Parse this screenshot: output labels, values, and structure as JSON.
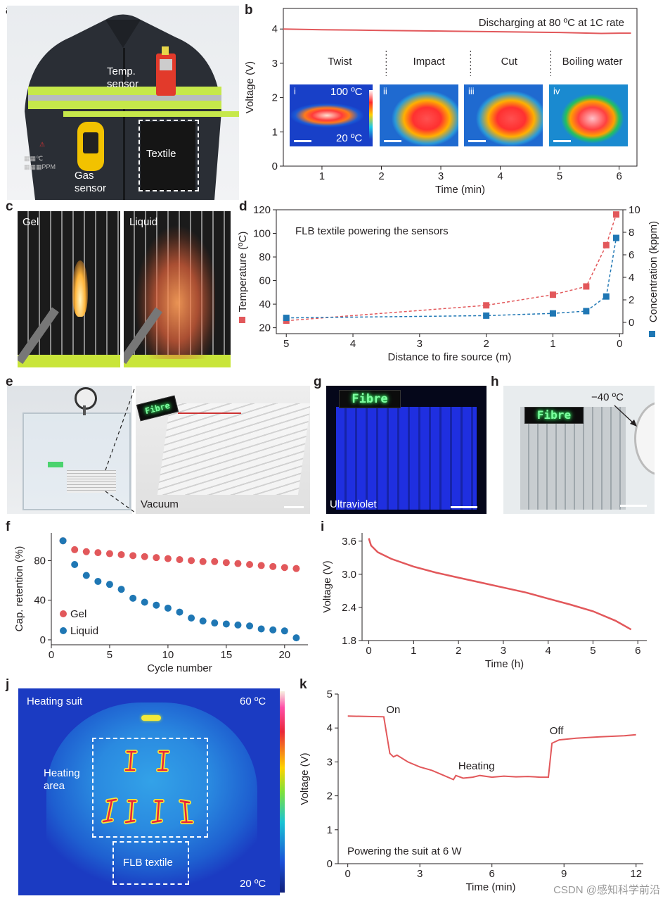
{
  "panel_labels": {
    "a": "a",
    "b": "b",
    "c": "c",
    "d": "d",
    "e": "e",
    "f": "f",
    "g": "g",
    "h": "h",
    "i": "i",
    "j": "j",
    "k": "k"
  },
  "panel_a": {
    "temp_sensor": [
      "Temp.",
      "sensor"
    ],
    "gas_sensor": [
      "Gas",
      "sensor"
    ],
    "textile": "Textile"
  },
  "panel_b": {
    "annotation": "Discharging at 80 ºC at 1C rate",
    "segments": [
      "Twist",
      "Impact",
      "Cut",
      "Boiling water"
    ],
    "insets": [
      "i",
      "ii",
      "iii",
      "iv"
    ],
    "inset_temp_high": "100 ºC",
    "inset_temp_low": "20 ºC"
  },
  "panel_c": {
    "left": "Gel",
    "right": "Liquid"
  },
  "panel_d": {
    "annotation": "FLB textile powering the sensors"
  },
  "panel_e": {
    "label": "Vacuum",
    "led": "Fibre"
  },
  "panel_g": {
    "label": "Ultraviolet",
    "led": "Fibre"
  },
  "panel_h": {
    "led": "Fibre",
    "temp": "−40 ºC"
  },
  "panel_j": {
    "title": "Heating suit",
    "heating_area": [
      "Heating",
      "area"
    ],
    "textile": "FLB textile",
    "temp_high": "60 ºC",
    "temp_low": "20 ºC"
  },
  "panel_k": {
    "on": "On",
    "off": "Off",
    "heating": "Heating",
    "annotation": "Powering the suit at 6 W"
  },
  "watermark": "CSDN @感知科学前沿",
  "colors": {
    "red": "#e2585b",
    "blue": "#1f77b4",
    "uv": "#1a2bd6",
    "thermal_bg": "#1a3fc4"
  },
  "chart_data": [
    {
      "id": "b",
      "type": "line",
      "xlabel": "Time (min)",
      "ylabel": "Voltage (V)",
      "xlim": [
        0.35,
        6.3
      ],
      "ylim": [
        0,
        4.6
      ],
      "xticks": [
        1,
        2,
        3,
        4,
        5,
        6
      ],
      "yticks": [
        0,
        1,
        2,
        3,
        4
      ],
      "series": [
        {
          "values": [
            [
              0.35,
              4.0
            ],
            [
              1,
              3.98
            ],
            [
              2,
              3.96
            ],
            [
              3,
              3.94
            ],
            [
              4,
              3.92
            ],
            [
              5,
              3.9
            ],
            [
              5.7,
              3.87
            ],
            [
              6,
              3.88
            ],
            [
              6.2,
              3.88
            ]
          ]
        }
      ],
      "dividers": [
        2.08,
        3.5,
        4.85
      ]
    },
    {
      "id": "d",
      "type": "line",
      "xlabel": "Distance to fire source (m)",
      "ylabel": "Temperature (ºC)",
      "y2label": "Concentration (kppm)",
      "xlim": [
        5.15,
        -0.05
      ],
      "ylim": [
        15,
        120
      ],
      "y2lim": [
        -1,
        10
      ],
      "xticks": [
        5,
        4,
        3,
        2,
        1,
        0
      ],
      "yticks": [
        20,
        40,
        60,
        80,
        100,
        120
      ],
      "y2ticks": [
        0,
        2,
        4,
        6,
        8,
        10
      ],
      "series": [
        {
          "axis": "left",
          "color": "red",
          "points": [
            [
              5,
              26
            ],
            [
              2,
              39
            ],
            [
              1,
              48
            ],
            [
              0.5,
              55
            ],
            [
              0.2,
              90
            ],
            [
              0.05,
              116
            ]
          ]
        },
        {
          "axis": "right",
          "color": "blue",
          "points": [
            [
              5,
              0.4
            ],
            [
              2,
              0.6
            ],
            [
              1,
              0.8
            ],
            [
              0.5,
              1.0
            ],
            [
              0.2,
              2.3
            ],
            [
              0.05,
              7.5
            ]
          ]
        }
      ]
    },
    {
      "id": "f",
      "type": "scatter",
      "xlabel": "Cycle number",
      "ylabel": "Cap. retention (%)",
      "xlim": [
        0,
        22
      ],
      "ylim": [
        -5,
        108
      ],
      "xticks": [
        0,
        5,
        10,
        15,
        20
      ],
      "yticks": [
        0,
        40,
        80
      ],
      "series": [
        {
          "name": "Gel",
          "color": "red",
          "x": [
            1,
            2,
            3,
            4,
            5,
            6,
            7,
            8,
            9,
            10,
            11,
            12,
            13,
            14,
            15,
            16,
            17,
            18,
            19,
            20,
            21
          ],
          "y": [
            100,
            91,
            89,
            88,
            87,
            86,
            85,
            84,
            83,
            82,
            81,
            80,
            79,
            79,
            78,
            77,
            76,
            75,
            74,
            73,
            72
          ]
        },
        {
          "name": "Liquid",
          "color": "blue",
          "x": [
            1,
            2,
            3,
            4,
            5,
            6,
            7,
            8,
            9,
            10,
            11,
            12,
            13,
            14,
            15,
            16,
            17,
            18,
            19,
            20,
            21
          ],
          "y": [
            100,
            76,
            65,
            59,
            56,
            51,
            42,
            38,
            35,
            32,
            28,
            22,
            19,
            17,
            16,
            15,
            14,
            11,
            10,
            9,
            2
          ]
        }
      ]
    },
    {
      "id": "i",
      "type": "line",
      "xlabel": "Time (h)",
      "ylabel": "Voltage (V)",
      "xlim": [
        -0.15,
        6.2
      ],
      "ylim": [
        1.8,
        3.75
      ],
      "xticks": [
        0,
        1,
        2,
        3,
        4,
        5,
        6
      ],
      "yticks": [
        1.8,
        2.4,
        3.0,
        3.6
      ],
      "series": [
        {
          "values": [
            [
              0,
              3.65
            ],
            [
              0.05,
              3.52
            ],
            [
              0.2,
              3.4
            ],
            [
              0.5,
              3.28
            ],
            [
              1,
              3.14
            ],
            [
              1.5,
              3.03
            ],
            [
              2,
              2.94
            ],
            [
              2.5,
              2.85
            ],
            [
              3,
              2.76
            ],
            [
              3.5,
              2.67
            ],
            [
              4,
              2.56
            ],
            [
              4.5,
              2.45
            ],
            [
              5,
              2.33
            ],
            [
              5.5,
              2.16
            ],
            [
              5.85,
              2.0
            ]
          ]
        }
      ]
    },
    {
      "id": "k",
      "type": "line",
      "xlabel": "Time (min)",
      "ylabel": "Voltage (V)",
      "xlim": [
        -0.4,
        12.3
      ],
      "ylim": [
        0,
        5
      ],
      "xticks": [
        0,
        3,
        6,
        9,
        12
      ],
      "yticks": [
        0,
        1,
        2,
        3,
        4,
        5
      ],
      "series": [
        {
          "values": [
            [
              0,
              4.35
            ],
            [
              1.5,
              4.33
            ],
            [
              1.6,
              3.9
            ],
            [
              1.75,
              3.25
            ],
            [
              1.9,
              3.15
            ],
            [
              2.05,
              3.2
            ],
            [
              2.5,
              3.0
            ],
            [
              3,
              2.85
            ],
            [
              3.5,
              2.75
            ],
            [
              4,
              2.6
            ],
            [
              4.4,
              2.48
            ],
            [
              4.5,
              2.6
            ],
            [
              4.8,
              2.52
            ],
            [
              5.2,
              2.55
            ],
            [
              5.5,
              2.6
            ],
            [
              6,
              2.55
            ],
            [
              6.5,
              2.58
            ],
            [
              7,
              2.56
            ],
            [
              7.5,
              2.57
            ],
            [
              8,
              2.55
            ],
            [
              8.35,
              2.55
            ],
            [
              8.5,
              3.55
            ],
            [
              8.8,
              3.65
            ],
            [
              9.5,
              3.7
            ],
            [
              10.5,
              3.74
            ],
            [
              11.5,
              3.77
            ],
            [
              12,
              3.8
            ]
          ]
        }
      ]
    }
  ]
}
